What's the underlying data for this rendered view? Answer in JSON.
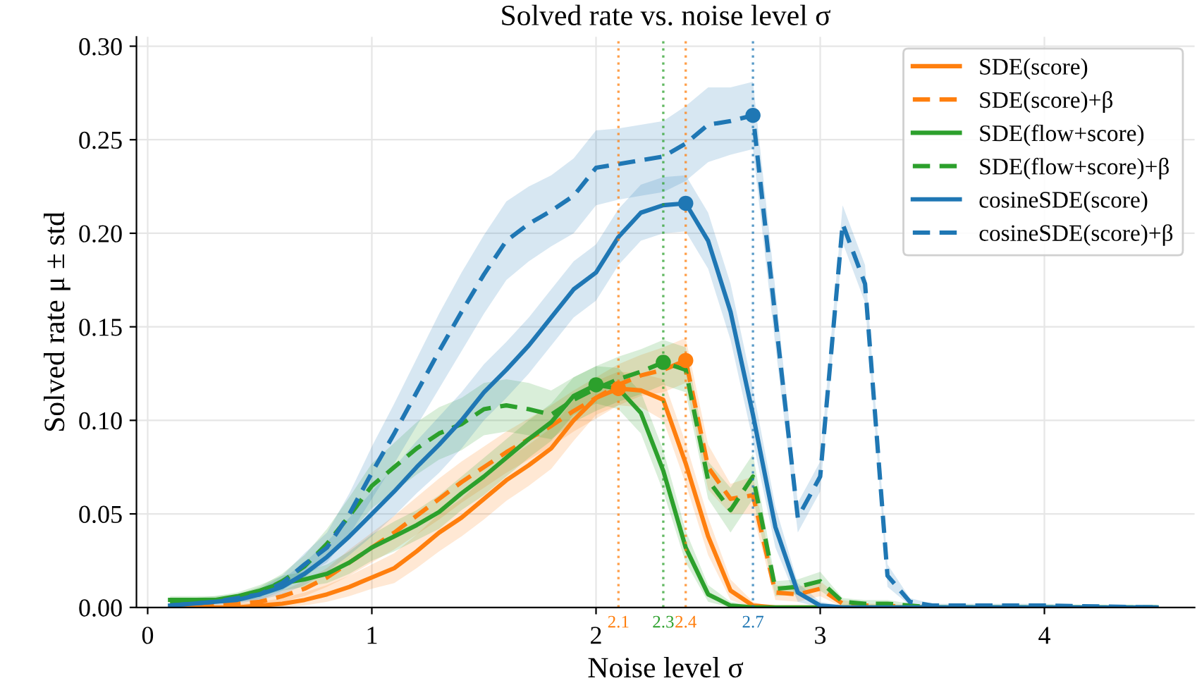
{
  "chart_data": {
    "type": "line",
    "title": "Solved rate vs. noise level σ",
    "xlabel": "Noise level σ",
    "ylabel": "Solved rate μ ± std",
    "x": [
      0.1,
      0.2,
      0.3,
      0.4,
      0.5,
      0.6,
      0.7,
      0.8,
      0.9,
      1.0,
      1.1,
      1.2,
      1.3,
      1.4,
      1.5,
      1.6,
      1.7,
      1.8,
      1.9,
      2.0,
      2.1,
      2.2,
      2.3,
      2.4,
      2.5,
      2.6,
      2.7,
      2.8,
      2.9,
      3.0,
      3.1,
      3.2,
      3.3,
      3.4,
      3.5,
      4.0,
      4.5
    ],
    "xlim": [
      -0.05,
      4.67
    ],
    "ylim": [
      0,
      0.305
    ],
    "xticks": [
      0,
      1,
      2,
      3,
      4
    ],
    "yticks": [
      {
        "value": 0,
        "label": "0.00"
      },
      {
        "value": 0.05,
        "label": "0.05"
      },
      {
        "value": 0.1,
        "label": "0.10"
      },
      {
        "value": 0.15,
        "label": "0.15"
      },
      {
        "value": 0.2,
        "label": "0.20"
      },
      {
        "value": 0.25,
        "label": "0.25"
      },
      {
        "value": 0.3,
        "label": "0.30"
      }
    ],
    "grid": true,
    "legend": "top right",
    "series": [
      {
        "name": "SDE(score)",
        "color": "#ff7f0e",
        "line_style": "solid",
        "values": [
          0,
          0,
          0,
          0,
          0.001,
          0.002,
          0.004,
          0.007,
          0.011,
          0.016,
          0.021,
          0.03,
          0.04,
          0.048,
          0.058,
          0.068,
          0.076,
          0.085,
          0.1,
          0.112,
          0.117,
          0.116,
          0.111,
          0.077,
          0.038,
          0.009,
          0.001,
          0,
          0,
          0,
          0,
          0,
          0,
          0,
          0,
          null,
          null
        ],
        "lower": [
          0,
          0,
          0,
          0,
          0,
          0,
          0.001,
          0.003,
          0.006,
          0.01,
          0.013,
          0.021,
          0.03,
          0.038,
          0.047,
          0.057,
          0.065,
          0.074,
          0.089,
          0.103,
          0.108,
          0.107,
          0.1,
          0.066,
          0.028,
          0.004,
          0,
          0,
          0,
          0,
          0,
          0,
          0,
          0,
          0,
          0,
          0
        ],
        "upper": [
          0.001,
          0.001,
          0.001,
          0.002,
          0.003,
          0.005,
          0.008,
          0.012,
          0.017,
          0.023,
          0.029,
          0.039,
          0.05,
          0.058,
          0.069,
          0.079,
          0.087,
          0.096,
          0.111,
          0.121,
          0.126,
          0.125,
          0.122,
          0.088,
          0.048,
          0.015,
          0.003,
          0,
          0,
          0,
          0,
          0,
          0,
          0,
          0,
          0,
          0
        ]
      },
      {
        "name": "SDE(score)+β",
        "color": "#ff7f0e",
        "line_style": "dashed",
        "values": [
          0,
          0.001,
          0.001,
          0.002,
          0.003,
          0.006,
          0.01,
          0.016,
          0.024,
          0.032,
          0.04,
          0.049,
          0.058,
          0.067,
          0.075,
          0.083,
          0.09,
          0.097,
          0.105,
          0.112,
          0.119,
          0.124,
          0.127,
          0.132,
          0.075,
          0.058,
          0.06,
          0.008,
          0.007,
          0.01,
          0.002,
          0.001,
          0.001,
          0,
          0,
          null,
          null
        ],
        "lower": [
          0,
          0,
          0,
          0,
          0.001,
          0.003,
          0.006,
          0.011,
          0.017,
          0.024,
          0.031,
          0.039,
          0.047,
          0.056,
          0.064,
          0.072,
          0.079,
          0.086,
          0.094,
          0.101,
          0.108,
          0.113,
          0.115,
          0.12,
          0.063,
          0.05,
          0.05,
          0.004,
          0.003,
          0.006,
          0,
          0,
          0,
          0,
          0,
          0,
          0
        ],
        "upper": [
          0.001,
          0.002,
          0.002,
          0.004,
          0.005,
          0.009,
          0.014,
          0.021,
          0.031,
          0.04,
          0.049,
          0.059,
          0.069,
          0.078,
          0.086,
          0.094,
          0.101,
          0.108,
          0.116,
          0.123,
          0.13,
          0.135,
          0.139,
          0.144,
          0.087,
          0.066,
          0.07,
          0.012,
          0.011,
          0.014,
          0.004,
          0.002,
          0.002,
          0.001,
          0,
          0,
          0
        ]
      },
      {
        "name": "SDE(flow+score)",
        "color": "#2ca02c",
        "line_style": "solid",
        "values": [
          0.004,
          0.004,
          0.004,
          0.006,
          0.009,
          0.013,
          0.015,
          0.018,
          0.024,
          0.032,
          0.038,
          0.044,
          0.051,
          0.061,
          0.07,
          0.08,
          0.09,
          0.099,
          0.113,
          0.119,
          0.117,
          0.104,
          0.073,
          0.032,
          0.007,
          0.001,
          0,
          0,
          0,
          0,
          0,
          0,
          0,
          0,
          0,
          0,
          0
        ],
        "lower": [
          0.002,
          0.002,
          0.002,
          0.004,
          0.006,
          0.009,
          0.011,
          0.013,
          0.018,
          0.025,
          0.03,
          0.036,
          0.042,
          0.052,
          0.06,
          0.07,
          0.08,
          0.089,
          0.103,
          0.109,
          0.106,
          0.093,
          0.062,
          0.024,
          0.003,
          0,
          0,
          0,
          0,
          0,
          0,
          0,
          0,
          0,
          0,
          0,
          0
        ],
        "upper": [
          0.006,
          0.006,
          0.006,
          0.008,
          0.012,
          0.017,
          0.019,
          0.023,
          0.03,
          0.039,
          0.046,
          0.052,
          0.06,
          0.07,
          0.08,
          0.09,
          0.1,
          0.109,
          0.123,
          0.129,
          0.128,
          0.115,
          0.084,
          0.041,
          0.012,
          0.003,
          0.001,
          0,
          0,
          0,
          0,
          0,
          0,
          0,
          0,
          0,
          0
        ]
      },
      {
        "name": "SDE(flow+score)+β",
        "color": "#2ca02c",
        "line_style": "dashed",
        "values": [
          0.003,
          0.003,
          0.004,
          0.005,
          0.008,
          0.014,
          0.022,
          0.034,
          0.049,
          0.065,
          0.075,
          0.085,
          0.093,
          0.098,
          0.106,
          0.108,
          0.106,
          0.103,
          0.111,
          0.117,
          0.122,
          0.126,
          0.131,
          0.127,
          0.068,
          0.052,
          0.07,
          0.01,
          0.011,
          0.014,
          0.003,
          0.002,
          0.002,
          0.001,
          0,
          0,
          0
        ],
        "lower": [
          0.001,
          0.001,
          0.002,
          0.003,
          0.005,
          0.01,
          0.016,
          0.026,
          0.039,
          0.053,
          0.062,
          0.071,
          0.079,
          0.084,
          0.092,
          0.094,
          0.092,
          0.09,
          0.099,
          0.105,
          0.11,
          0.114,
          0.119,
          0.115,
          0.058,
          0.04,
          0.058,
          0.006,
          0.007,
          0.009,
          0.001,
          0,
          0,
          0,
          0,
          0,
          0
        ],
        "upper": [
          0.005,
          0.005,
          0.006,
          0.007,
          0.011,
          0.018,
          0.028,
          0.042,
          0.059,
          0.077,
          0.088,
          0.099,
          0.107,
          0.112,
          0.12,
          0.122,
          0.12,
          0.116,
          0.123,
          0.129,
          0.134,
          0.138,
          0.143,
          0.139,
          0.078,
          0.064,
          0.082,
          0.014,
          0.015,
          0.019,
          0.005,
          0.004,
          0.004,
          0.002,
          0.001,
          0,
          0
        ]
      },
      {
        "name": "cosineSDE(score)",
        "color": "#1f77b4",
        "line_style": "solid",
        "values": [
          0.001,
          0.002,
          0.003,
          0.004,
          0.007,
          0.011,
          0.018,
          0.027,
          0.038,
          0.05,
          0.062,
          0.075,
          0.087,
          0.1,
          0.115,
          0.127,
          0.14,
          0.155,
          0.17,
          0.179,
          0.198,
          0.211,
          0.215,
          0.216,
          0.196,
          0.158,
          0.103,
          0.043,
          0.008,
          0.001,
          0,
          0,
          0,
          0,
          0,
          0,
          0
        ],
        "lower": [
          0,
          0.001,
          0.001,
          0.002,
          0.004,
          0.007,
          0.012,
          0.019,
          0.028,
          0.038,
          0.049,
          0.061,
          0.072,
          0.085,
          0.1,
          0.112,
          0.125,
          0.14,
          0.155,
          0.164,
          0.183,
          0.196,
          0.2,
          0.201,
          0.181,
          0.143,
          0.089,
          0.032,
          0.003,
          0,
          0,
          0,
          0,
          0,
          0,
          0,
          0
        ],
        "upper": [
          0.002,
          0.003,
          0.005,
          0.006,
          0.01,
          0.015,
          0.024,
          0.035,
          0.048,
          0.062,
          0.075,
          0.089,
          0.102,
          0.115,
          0.13,
          0.142,
          0.155,
          0.17,
          0.185,
          0.194,
          0.213,
          0.226,
          0.23,
          0.231,
          0.211,
          0.173,
          0.117,
          0.054,
          0.013,
          0.003,
          0.001,
          0,
          0,
          0,
          0,
          0,
          0
        ]
      },
      {
        "name": "cosineSDE(score)+β",
        "color": "#1f77b4",
        "line_style": "dashed",
        "values": [
          0.001,
          0.002,
          0.003,
          0.005,
          0.007,
          0.013,
          0.023,
          0.032,
          0.05,
          0.072,
          0.093,
          0.115,
          0.137,
          0.158,
          0.178,
          0.196,
          0.205,
          0.212,
          0.22,
          0.235,
          0.237,
          0.239,
          0.241,
          0.248,
          0.258,
          0.26,
          0.263,
          0.155,
          0.048,
          0.07,
          0.205,
          0.173,
          0.017,
          0.003,
          0.001,
          0.001,
          0
        ],
        "lower": [
          0,
          0.001,
          0.002,
          0.003,
          0.004,
          0.009,
          0.017,
          0.024,
          0.039,
          0.058,
          0.077,
          0.097,
          0.117,
          0.137,
          0.157,
          0.175,
          0.185,
          0.193,
          0.2,
          0.215,
          0.218,
          0.22,
          0.222,
          0.228,
          0.238,
          0.242,
          0.245,
          0.14,
          0.04,
          0.062,
          0.195,
          0.163,
          0.011,
          0.001,
          0,
          0,
          0
        ],
        "upper": [
          0.002,
          0.003,
          0.004,
          0.007,
          0.01,
          0.017,
          0.029,
          0.04,
          0.061,
          0.086,
          0.109,
          0.133,
          0.157,
          0.179,
          0.199,
          0.217,
          0.225,
          0.231,
          0.24,
          0.255,
          0.256,
          0.258,
          0.26,
          0.268,
          0.278,
          0.278,
          0.281,
          0.17,
          0.056,
          0.078,
          0.215,
          0.183,
          0.023,
          0.005,
          0.002,
          0.002,
          0
        ]
      },
      {
        "type": "scatter",
        "color": "#ff7f0e",
        "marker": "circle",
        "x": [
          2.1,
          2.4
        ],
        "values": [
          0.117,
          0.132
        ]
      },
      {
        "type": "scatter",
        "color": "#2ca02c",
        "marker": "circle",
        "x": [
          2.0,
          2.3
        ],
        "values": [
          0.119,
          0.131
        ]
      },
      {
        "type": "scatter",
        "color": "#1f77b4",
        "marker": "circle",
        "x": [
          2.4,
          2.7
        ],
        "values": [
          0.216,
          0.263
        ]
      }
    ],
    "ref_lines": [
      {
        "axis": "x",
        "value": 2.1,
        "label": "2.1",
        "color": "#ff7f0e",
        "line_style": "dotted"
      },
      {
        "axis": "x",
        "value": 2.3,
        "label": "2.3",
        "color": "#2ca02c",
        "line_style": "dotted"
      },
      {
        "axis": "x",
        "value": 2.4,
        "label": "2.4",
        "color": "#ff7f0e",
        "line_style": "dotted"
      },
      {
        "axis": "x",
        "value": 2.7,
        "label": "2.7",
        "color": "#1f77b4",
        "line_style": "dotted"
      }
    ]
  }
}
